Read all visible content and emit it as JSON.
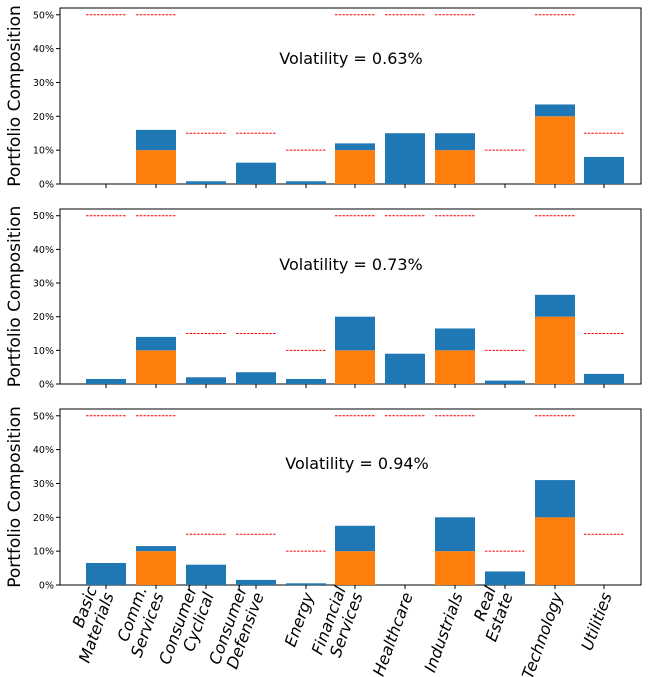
{
  "chart_data": [
    {
      "type": "bar",
      "stacked": true,
      "annotation": "Volatility = 0.63%",
      "ylabel": "Portfolio Composition",
      "ylim": [
        0,
        52
      ],
      "yticks": [
        "0%",
        "10%",
        "20%",
        "30%",
        "40%",
        "50%"
      ],
      "grid": false,
      "categories": [
        "Basic Materials",
        "Comm. Services",
        "Consumer Cyclical",
        "Consumer Defensive",
        "Energy",
        "Financial Services",
        "Healthcare",
        "Industrials",
        "Real Estate",
        "Technology",
        "Utilities"
      ],
      "series": [
        {
          "color": "#ff7f0e",
          "values": [
            0,
            10,
            0,
            0,
            0,
            10,
            0,
            10,
            0,
            20,
            0
          ]
        },
        {
          "color": "#1f77b4",
          "values": [
            0,
            6,
            0.8,
            6.3,
            0.8,
            2,
            15,
            5,
            0,
            3.5,
            8
          ]
        }
      ],
      "limits": [
        50,
        50,
        15,
        15,
        10,
        50,
        50,
        50,
        10,
        50,
        15
      ]
    },
    {
      "type": "bar",
      "stacked": true,
      "annotation": "Volatility = 0.73%",
      "ylabel": "Portfolio Composition",
      "ylim": [
        0,
        52
      ],
      "yticks": [
        "0%",
        "10%",
        "20%",
        "30%",
        "40%",
        "50%"
      ],
      "grid": false,
      "categories": [
        "Basic Materials",
        "Comm. Services",
        "Consumer Cyclical",
        "Consumer Defensive",
        "Energy",
        "Financial Services",
        "Healthcare",
        "Industrials",
        "Real Estate",
        "Technology",
        "Utilities"
      ],
      "series": [
        {
          "color": "#ff7f0e",
          "values": [
            0,
            10,
            0,
            0,
            0,
            10,
            0,
            10,
            0,
            20,
            0
          ]
        },
        {
          "color": "#1f77b4",
          "values": [
            1.5,
            4,
            2,
            3.5,
            1.5,
            10,
            9,
            6.5,
            1,
            6.5,
            3
          ]
        }
      ],
      "limits": [
        50,
        50,
        15,
        15,
        10,
        50,
        50,
        50,
        10,
        50,
        15
      ]
    },
    {
      "type": "bar",
      "stacked": true,
      "annotation": "Volatility = 0.94%",
      "ylabel": "Portfolio Composition",
      "ylim": [
        0,
        52
      ],
      "yticks": [
        "0%",
        "10%",
        "20%",
        "30%",
        "40%",
        "50%"
      ],
      "grid": false,
      "categories": [
        "Basic Materials",
        "Comm. Services",
        "Consumer Cyclical",
        "Consumer Defensive",
        "Energy",
        "Financial Services",
        "Healthcare",
        "Industrials",
        "Real Estate",
        "Technology",
        "Utilities"
      ],
      "series": [
        {
          "color": "#ff7f0e",
          "values": [
            0,
            10,
            0,
            0,
            0,
            10,
            0,
            10,
            0,
            20,
            0
          ]
        },
        {
          "color": "#1f77b4",
          "values": [
            6.5,
            1.5,
            6,
            1.5,
            0.5,
            7.5,
            0,
            10,
            4,
            11,
            0
          ]
        }
      ],
      "limits": [
        50,
        50,
        15,
        15,
        10,
        50,
        50,
        50,
        10,
        50,
        15
      ]
    }
  ],
  "x_tick_labels": [
    [
      "Basic",
      "Materials"
    ],
    [
      "Comm.",
      "Services"
    ],
    [
      "Consumer",
      "Cyclical"
    ],
    [
      "Consumer",
      "Defensive"
    ],
    [
      "Energy"
    ],
    [
      "Financial",
      "Services"
    ],
    [
      "Healthcare"
    ],
    [
      "Industrials"
    ],
    [
      "Real",
      "Estate"
    ],
    [
      "Technology"
    ],
    [
      "Utilities"
    ]
  ],
  "colors": {
    "orange": "#ff7f0e",
    "blue": "#1f77b4",
    "limit_line": "#ff0000"
  }
}
